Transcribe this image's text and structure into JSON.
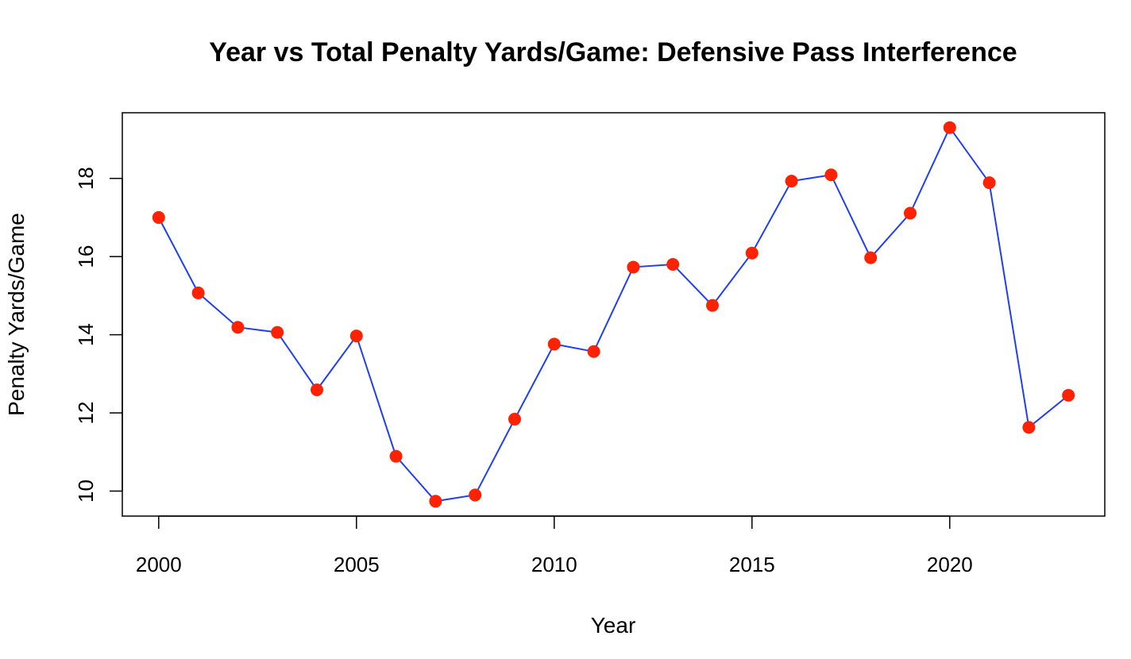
{
  "chart_data": {
    "type": "line",
    "title": "Year vs Total Penalty Yards/Game: Defensive Pass Interference",
    "xlabel": "Year",
    "ylabel": "Penalty Yards/Game",
    "x": [
      2000,
      2001,
      2002,
      2003,
      2004,
      2005,
      2006,
      2007,
      2008,
      2009,
      2010,
      2011,
      2012,
      2013,
      2014,
      2015,
      2016,
      2017,
      2018,
      2019,
      2020,
      2021,
      2022,
      2023
    ],
    "series": [
      {
        "values": [
          17.0,
          15.07,
          14.19,
          14.06,
          12.59,
          13.97,
          10.89,
          9.74,
          9.9,
          11.84,
          13.76,
          13.57,
          15.73,
          15.8,
          14.75,
          16.09,
          17.93,
          18.09,
          15.97,
          17.11,
          19.3,
          17.89,
          11.63,
          12.45
        ]
      }
    ],
    "x_ticks": [
      "2000",
      "2005",
      "2010",
      "2015",
      "2020"
    ],
    "y_ticks": [
      "10",
      "12",
      "14",
      "16",
      "18"
    ],
    "xlim": [
      1999.08,
      2023.92
    ],
    "ylim": [
      9.36,
      19.68
    ],
    "line_color": "#1f3ff5",
    "point_color": "#ff2200",
    "grid": false,
    "legend": false
  }
}
